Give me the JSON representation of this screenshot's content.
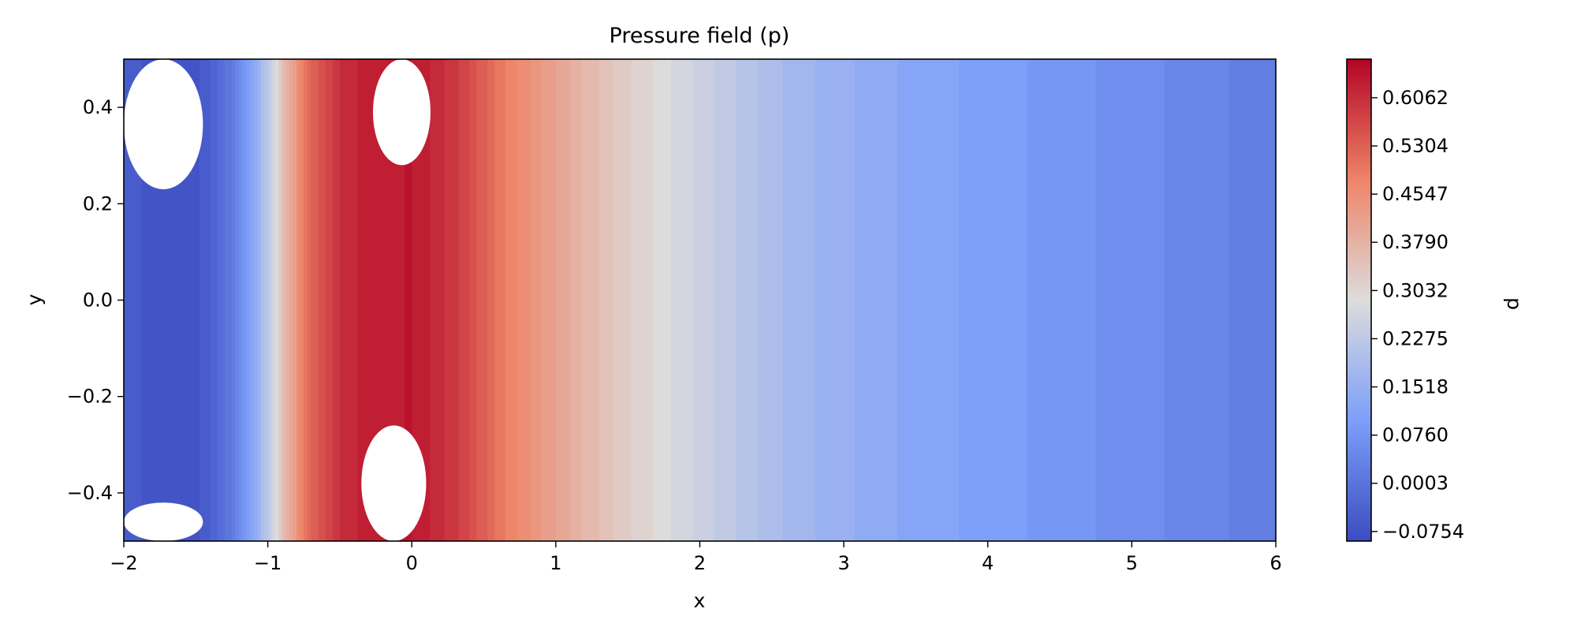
{
  "chart_data": {
    "type": "heatmap",
    "subtype": "filled-contour",
    "title": "Pressure field (p)",
    "xlabel": "x",
    "ylabel": "y",
    "xlim": [
      -2,
      6
    ],
    "ylim": [
      -0.5,
      0.5
    ],
    "x_ticks": [
      -2,
      -1,
      0,
      1,
      2,
      3,
      4,
      5,
      6
    ],
    "x_tick_labels": [
      "−2",
      "−1",
      "0",
      "1",
      "2",
      "3",
      "4",
      "5",
      "6"
    ],
    "y_ticks": [
      -0.4,
      -0.2,
      0.0,
      0.2,
      0.4
    ],
    "y_tick_labels": [
      "−0.4",
      "−0.2",
      "0.0",
      "0.2",
      "0.4"
    ],
    "colormap": "coolwarm",
    "colorbar": {
      "label": "p",
      "range": [
        -0.0905,
        0.6668
      ],
      "ticks": [
        -0.0754,
        0.0003,
        0.076,
        0.1518,
        0.2275,
        0.3032,
        0.379,
        0.4547,
        0.5304,
        0.6062
      ],
      "tick_labels": [
        "−0.0754",
        "0.0003",
        "0.0760",
        "0.1518",
        "0.2275",
        "0.3032",
        "0.3790",
        "0.4547",
        "0.5304",
        "0.6062"
      ]
    },
    "field_profile_along_x": {
      "x": [
        -2.0,
        -1.8,
        -1.6,
        -1.45,
        -1.3,
        -1.15,
        -1.0,
        -0.85,
        -0.7,
        -0.5,
        -0.3,
        0.0,
        0.3,
        0.6,
        0.9,
        1.2,
        1.5,
        1.8,
        2.1,
        2.5,
        3.0,
        3.5,
        4.0,
        4.5,
        5.0,
        5.5,
        6.0
      ],
      "p": [
        -0.05,
        -0.07,
        -0.075,
        -0.06,
        -0.01,
        0.08,
        0.22,
        0.4,
        0.52,
        0.6,
        0.63,
        0.64,
        0.59,
        0.5,
        0.43,
        0.37,
        0.32,
        0.28,
        0.24,
        0.19,
        0.15,
        0.12,
        0.1,
        0.08,
        0.06,
        0.04,
        0.02
      ]
    },
    "masked_regions": [
      {
        "x_range": [
          -2.0,
          -1.45
        ],
        "y_range": [
          0.23,
          0.5
        ]
      },
      {
        "x_range": [
          -0.27,
          0.13
        ],
        "y_range": [
          0.28,
          0.5
        ]
      },
      {
        "x_range": [
          -0.35,
          0.1
        ],
        "y_range": [
          -0.5,
          -0.26
        ]
      },
      {
        "x_range": [
          -2.0,
          -1.45
        ],
        "y_range": [
          -0.5,
          -0.42
        ]
      }
    ],
    "grid": false,
    "legend": "none"
  }
}
